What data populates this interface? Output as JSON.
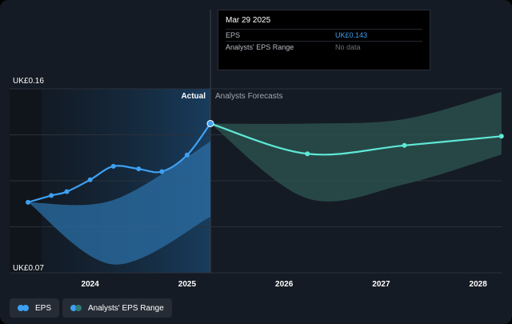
{
  "colors": {
    "eps": "#3ea0f2",
    "forecast_line": "#5ee8d6",
    "actual_range_fill": "#2b6fa5",
    "forecast_range_fill": "#2f5a56",
    "legend_range_dot_a": "#3ea0f2",
    "legend_range_dot_b": "#2f7d76"
  },
  "tooltip": {
    "date": "Mar 29 2025",
    "rows": [
      {
        "key": "EPS",
        "value": "UK£0.143"
      },
      {
        "key": "Analysts' EPS Range",
        "value": "No data"
      }
    ]
  },
  "labels": {
    "actual": "Actual",
    "forecast": "Analysts Forecasts"
  },
  "legend": {
    "items": [
      {
        "label": "EPS",
        "icon": "dot-pair-icon"
      },
      {
        "label": "Analysts' EPS Range",
        "icon": "dot-pair-icon"
      }
    ]
  },
  "chart_data": {
    "type": "line",
    "title": "",
    "xlabel": "",
    "ylabel": "",
    "xlim": [
      2023.17,
      2028.25
    ],
    "ylim": [
      0.07,
      0.16
    ],
    "y_axis_labels": [
      "UK£0.16",
      "UK£0.07"
    ],
    "x_ticks": [
      {
        "value": 2024,
        "label": "2024"
      },
      {
        "value": 2025,
        "label": "2025"
      },
      {
        "value": 2026,
        "label": "2026"
      },
      {
        "value": 2027,
        "label": "2027"
      },
      {
        "value": 2028,
        "label": "2028"
      }
    ],
    "grid": true,
    "divider_x": 2025.24,
    "highlight_band": [
      2023.5,
      2025.24
    ],
    "series": [
      {
        "name": "EPS",
        "role": "actual",
        "x": [
          2023.36,
          2023.6,
          2023.76,
          2024.0,
          2024.24,
          2024.5,
          2024.74,
          2025.0,
          2025.24
        ],
        "y": [
          0.1045,
          0.1078,
          0.1097,
          0.1155,
          0.1221,
          0.1208,
          0.1195,
          0.1276,
          0.143
        ]
      },
      {
        "name": "EPS",
        "role": "forecast",
        "x": [
          2025.24,
          2026.24,
          2027.24,
          2028.24
        ],
        "y": [
          0.143,
          0.1282,
          0.1323,
          0.1368
        ]
      }
    ],
    "ranges": [
      {
        "name": "Analysts' EPS Range",
        "role": "actual",
        "x": [
          2023.36,
          2024.24,
          2025.24
        ],
        "high": [
          0.1045,
          0.1056,
          0.1342
        ],
        "low": [
          0.1045,
          0.0741,
          0.0974
        ]
      },
      {
        "name": "Analysts' EPS Range",
        "role": "forecast",
        "x": [
          2025.24,
          2026.24,
          2027.24,
          2028.24
        ],
        "high": [
          0.143,
          0.143,
          0.1452,
          0.1585
        ],
        "low": [
          0.143,
          0.1064,
          0.1133,
          0.1278
        ]
      }
    ]
  }
}
